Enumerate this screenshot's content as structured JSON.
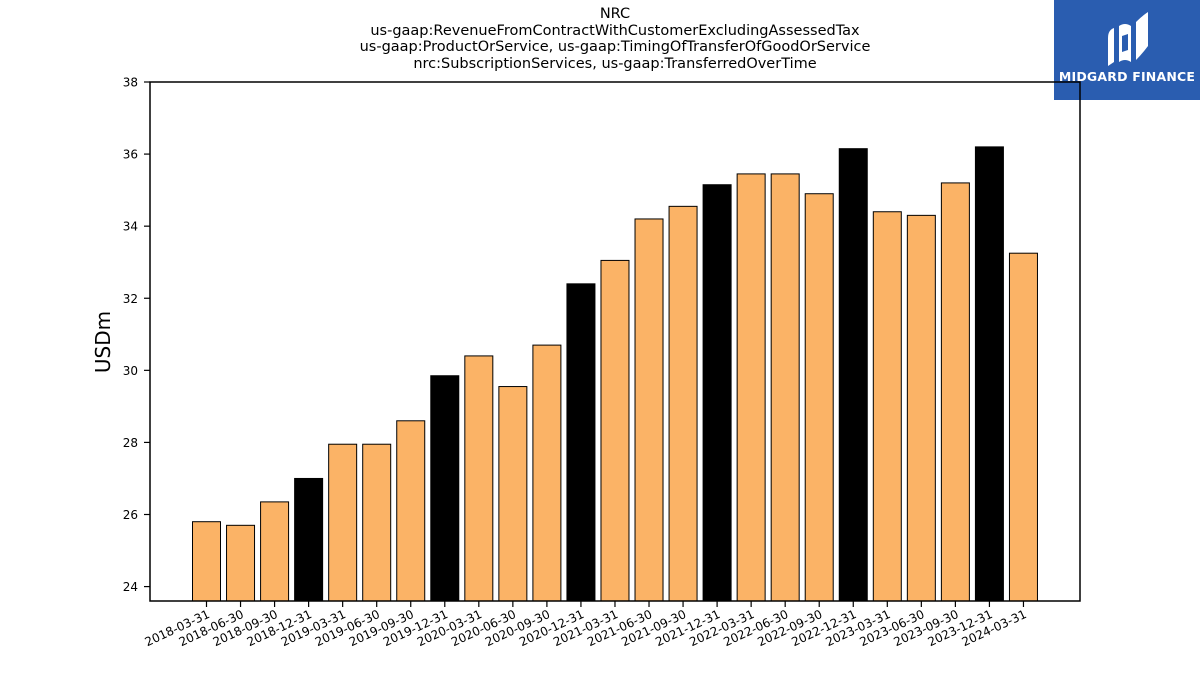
{
  "title_lines": [
    "NRC",
    "us-gaap:RevenueFromContractWithCustomerExcludingAssessedTax",
    "us-gaap:ProductOrService, us-gaap:TimingOfTransferOfGoodOrService",
    "nrc:SubscriptionServices, us-gaap:TransferredOverTime"
  ],
  "logo": {
    "text": "MIDGARD FINANCE",
    "background": "#2a5db0"
  },
  "chart_data": {
    "type": "bar",
    "ylabel": "USDm",
    "xlabel": "",
    "ylim": [
      23.6,
      38
    ],
    "yticks": [
      24,
      26,
      28,
      30,
      32,
      34,
      36,
      38
    ],
    "grid": false,
    "colors": {
      "quarter": "#fbb366",
      "year_end": "#000000"
    },
    "categories": [
      "2018-03-31",
      "2018-06-30",
      "2018-09-30",
      "2018-12-31",
      "2019-03-31",
      "2019-06-30",
      "2019-09-30",
      "2019-12-31",
      "2020-03-31",
      "2020-06-30",
      "2020-09-30",
      "2020-12-31",
      "2021-03-31",
      "2021-06-30",
      "2021-09-30",
      "2021-12-31",
      "2022-03-31",
      "2022-06-30",
      "2022-09-30",
      "2022-12-31",
      "2023-03-31",
      "2023-06-30",
      "2023-09-30",
      "2023-12-31",
      "2024-03-31"
    ],
    "values": [
      25.8,
      25.7,
      26.35,
      27.0,
      27.95,
      27.95,
      28.6,
      29.85,
      30.4,
      29.55,
      30.7,
      32.4,
      33.05,
      34.2,
      34.55,
      35.15,
      35.45,
      35.45,
      34.9,
      36.15,
      34.4,
      34.3,
      35.2,
      36.2,
      33.25
    ],
    "year_end": [
      false,
      false,
      false,
      true,
      false,
      false,
      false,
      true,
      false,
      false,
      false,
      true,
      false,
      false,
      false,
      true,
      false,
      false,
      false,
      true,
      false,
      false,
      false,
      true,
      false
    ]
  }
}
